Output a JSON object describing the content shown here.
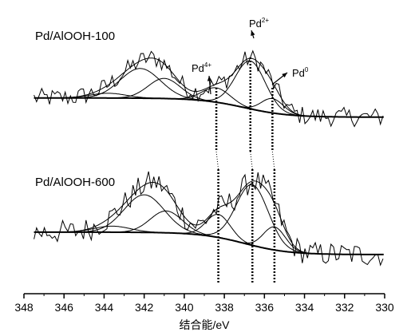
{
  "chart_data": {
    "type": "line",
    "xlabel": "结合能/eV",
    "xlim": [
      348,
      330
    ],
    "x_reversed": true,
    "xticks": [
      "348",
      "346",
      "344",
      "342",
      "340",
      "338",
      "336",
      "334",
      "332",
      "330"
    ],
    "y_axis_visible": false,
    "grid": false,
    "panels": [
      {
        "label": "Pd/AlOOH-100",
        "peaks": [
          {
            "center": 343.8,
            "amp": 0.1,
            "width": 0.9
          },
          {
            "center": 342.2,
            "amp": 0.62,
            "width": 1.0
          },
          {
            "center": 341.0,
            "amp": 0.42,
            "width": 0.8
          },
          {
            "center": 338.4,
            "amp": 0.3,
            "width": 0.7
          },
          {
            "center": 336.7,
            "amp": 1.0,
            "width": 0.75
          },
          {
            "center": 335.6,
            "amp": 0.3,
            "width": 0.55
          }
        ],
        "baseline": {
          "high_be": 0.12,
          "low_be": -0.28,
          "step_center": 337.0
        },
        "noise": 0.2
      },
      {
        "label": "Pd/AlOOH-600",
        "peaks": [
          {
            "center": 343.6,
            "amp": 0.1,
            "width": 0.9
          },
          {
            "center": 342.0,
            "amp": 0.62,
            "width": 1.0
          },
          {
            "center": 340.9,
            "amp": 0.36,
            "width": 0.8
          },
          {
            "center": 338.3,
            "amp": 0.38,
            "width": 0.6
          },
          {
            "center": 336.6,
            "amp": 1.0,
            "width": 0.8
          },
          {
            "center": 335.5,
            "amp": 0.38,
            "width": 0.55
          }
        ],
        "baseline": {
          "high_be": 0.12,
          "low_be": -0.25,
          "step_center": 337.0
        },
        "noise": 0.2
      }
    ],
    "annotations": [
      {
        "text": "Pd",
        "superscript": "4+"
      },
      {
        "text": "Pd",
        "superscript": "2+"
      },
      {
        "text": "Pd",
        "superscript": "0"
      }
    ],
    "reference_lines_be": [
      338.4,
      336.7,
      335.6
    ],
    "reference_lines_bottom_be": [
      338.3,
      336.6,
      335.5
    ]
  }
}
